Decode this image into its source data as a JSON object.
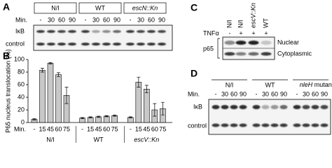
{
  "panel_a": {
    "label": "A",
    "groups": [
      "N/I",
      "WT",
      "escN::Kn"
    ],
    "min_label": "Min.",
    "minutes": [
      "-",
      "30",
      "60",
      "90",
      "-",
      "30",
      "60",
      "90",
      "-",
      "30",
      "60",
      "90"
    ],
    "rows": [
      "IκB",
      "control"
    ]
  },
  "chart_data": {
    "type": "bar",
    "panel_label": "B",
    "y_label": "P65 nucleus translocation (%)",
    "x_label": "Min.",
    "categories": [
      "-",
      "15",
      "45",
      "60",
      "75",
      "-",
      "15",
      "45",
      "60",
      "75",
      "-",
      "15",
      "45",
      "60",
      "75"
    ],
    "group_labels": [
      "N/I",
      "WT",
      "escV::Kn"
    ],
    "values": [
      5,
      83,
      94,
      76,
      43,
      7,
      8,
      9,
      10,
      11,
      8,
      64,
      53,
      20,
      22
    ],
    "errors": [
      1,
      3,
      1,
      3,
      13,
      1,
      1,
      1,
      1,
      1,
      1,
      8,
      6,
      10,
      10
    ],
    "color": "#c8c8c8",
    "ylim": [
      0,
      100
    ],
    "yticks": [
      0,
      20,
      40,
      60,
      80,
      100
    ]
  },
  "panel_c": {
    "label": "C",
    "columns": [
      "N/I",
      "N/I",
      "escV::Kn",
      "WT"
    ],
    "treatment": "TNFα",
    "signs": [
      "-",
      "+",
      "+",
      "+"
    ],
    "protein": "p65",
    "fractions": [
      "Nuclear",
      "Cytoplasmic"
    ]
  },
  "panel_d": {
    "label": "D",
    "groups": [
      "N/I",
      "WT"
    ],
    "mutant_gene": "nleH",
    "mutant_suffix": "mutant",
    "min_label": "Min.",
    "minutes": [
      "-",
      "30",
      "60",
      "90",
      "-",
      "30",
      "60",
      "90",
      "-",
      "30",
      "60",
      "90"
    ],
    "rows": [
      "IκB",
      "control"
    ]
  }
}
